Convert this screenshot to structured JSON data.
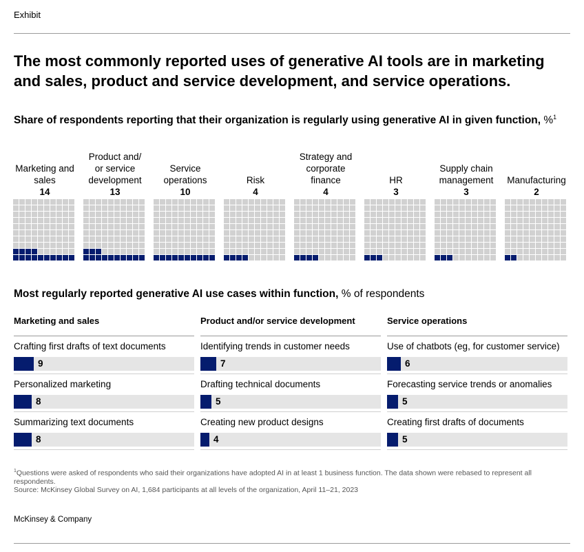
{
  "header": {
    "exhibit_label": "Exhibit"
  },
  "title": "The most commonly reported uses of generative AI tools are in marketing and sales, product and service development, and service operations.",
  "subtitle": {
    "bold": "Share of respondents reporting that their organization is regularly using generative AI in given function,",
    "unit": " %",
    "footnote_mark": "1"
  },
  "colors": {
    "filled": "#051c6e",
    "empty": "#d1d1d1",
    "track": "#e5e5e5"
  },
  "chart_data": [
    {
      "type": "waffle",
      "title": "Share of respondents reporting that their organization is regularly using generative AI in given function, %",
      "grid": "10x10",
      "categories": [
        "Marketing and sales",
        "Product and/ or service development",
        "Service operations",
        "Risk",
        "Strategy and corporate finance",
        "HR",
        "Supply chain management",
        "Manufacturing"
      ],
      "values": [
        14,
        13,
        10,
        4,
        4,
        3,
        3,
        2
      ]
    },
    {
      "type": "bar",
      "title": "Most regularly reported generative AI use cases within function, % of respondents",
      "groups": [
        {
          "name": "Marketing and sales",
          "items": [
            {
              "label": "Crafting first drafts of text documents",
              "value": 9
            },
            {
              "label": "Personalized marketing",
              "value": 8
            },
            {
              "label": "Summarizing text documents",
              "value": 8
            }
          ]
        },
        {
          "name": "Product and/or service development",
          "items": [
            {
              "label": "Identifying trends in customer needs",
              "value": 7
            },
            {
              "label": "Drafting technical documents",
              "value": 5
            },
            {
              "label": "Creating new product designs",
              "value": 4
            }
          ]
        },
        {
          "name": "Service operations",
          "items": [
            {
              "label": "Use of chatbots (eg, for customer service)",
              "value": 6
            },
            {
              "label": "Forecasting service trends or anomalies",
              "value": 5
            },
            {
              "label": "Creating first drafts of documents",
              "value": 5
            }
          ]
        }
      ]
    }
  ],
  "waffle_labels": [
    {
      "label": "Marketing and sales",
      "value": "14"
    },
    {
      "label": "Product and/ or service development",
      "value": "13"
    },
    {
      "label": "Service operations",
      "value": "10"
    },
    {
      "label": "Risk",
      "value": "4"
    },
    {
      "label": "Strategy and corporate finance",
      "value": "4"
    },
    {
      "label": "HR",
      "value": "3"
    },
    {
      "label": "Supply chain management",
      "value": "3"
    },
    {
      "label": "Manufacturing",
      "value": "2"
    }
  ],
  "section": {
    "bold": "Most regularly reported generative AI use cases within function,",
    "unit": " % of respondents"
  },
  "use_cases": [
    {
      "header": "Marketing and sales",
      "items": [
        {
          "label": "Crafting first drafts of text documents",
          "value": "9"
        },
        {
          "label": "Personalized marketing",
          "value": "8"
        },
        {
          "label": "Summarizing text documents",
          "value": "8"
        }
      ]
    },
    {
      "header": "Product and/or service development",
      "items": [
        {
          "label": "Identifying trends in customer needs",
          "value": "7"
        },
        {
          "label": "Drafting technical documents",
          "value": "5"
        },
        {
          "label": "Creating new product designs",
          "value": "4"
        }
      ]
    },
    {
      "header": "Service operations",
      "items": [
        {
          "label": "Use of chatbots (eg, for customer service)",
          "value": "6"
        },
        {
          "label": "Forecasting service trends or anomalies",
          "value": "5"
        },
        {
          "label": "Creating first drafts of documents",
          "value": "5"
        }
      ]
    }
  ],
  "footnote": {
    "mark": "1",
    "text": "Questions were asked of respondents who said their organizations have adopted AI in at least 1 business function. The data shown were rebased to represent all respondents.",
    "source": "Source: McKinsey Global Survey on AI, 1,684 participants at all levels of the organization, April 11–21, 2023"
  },
  "brand": "McKinsey & Company"
}
